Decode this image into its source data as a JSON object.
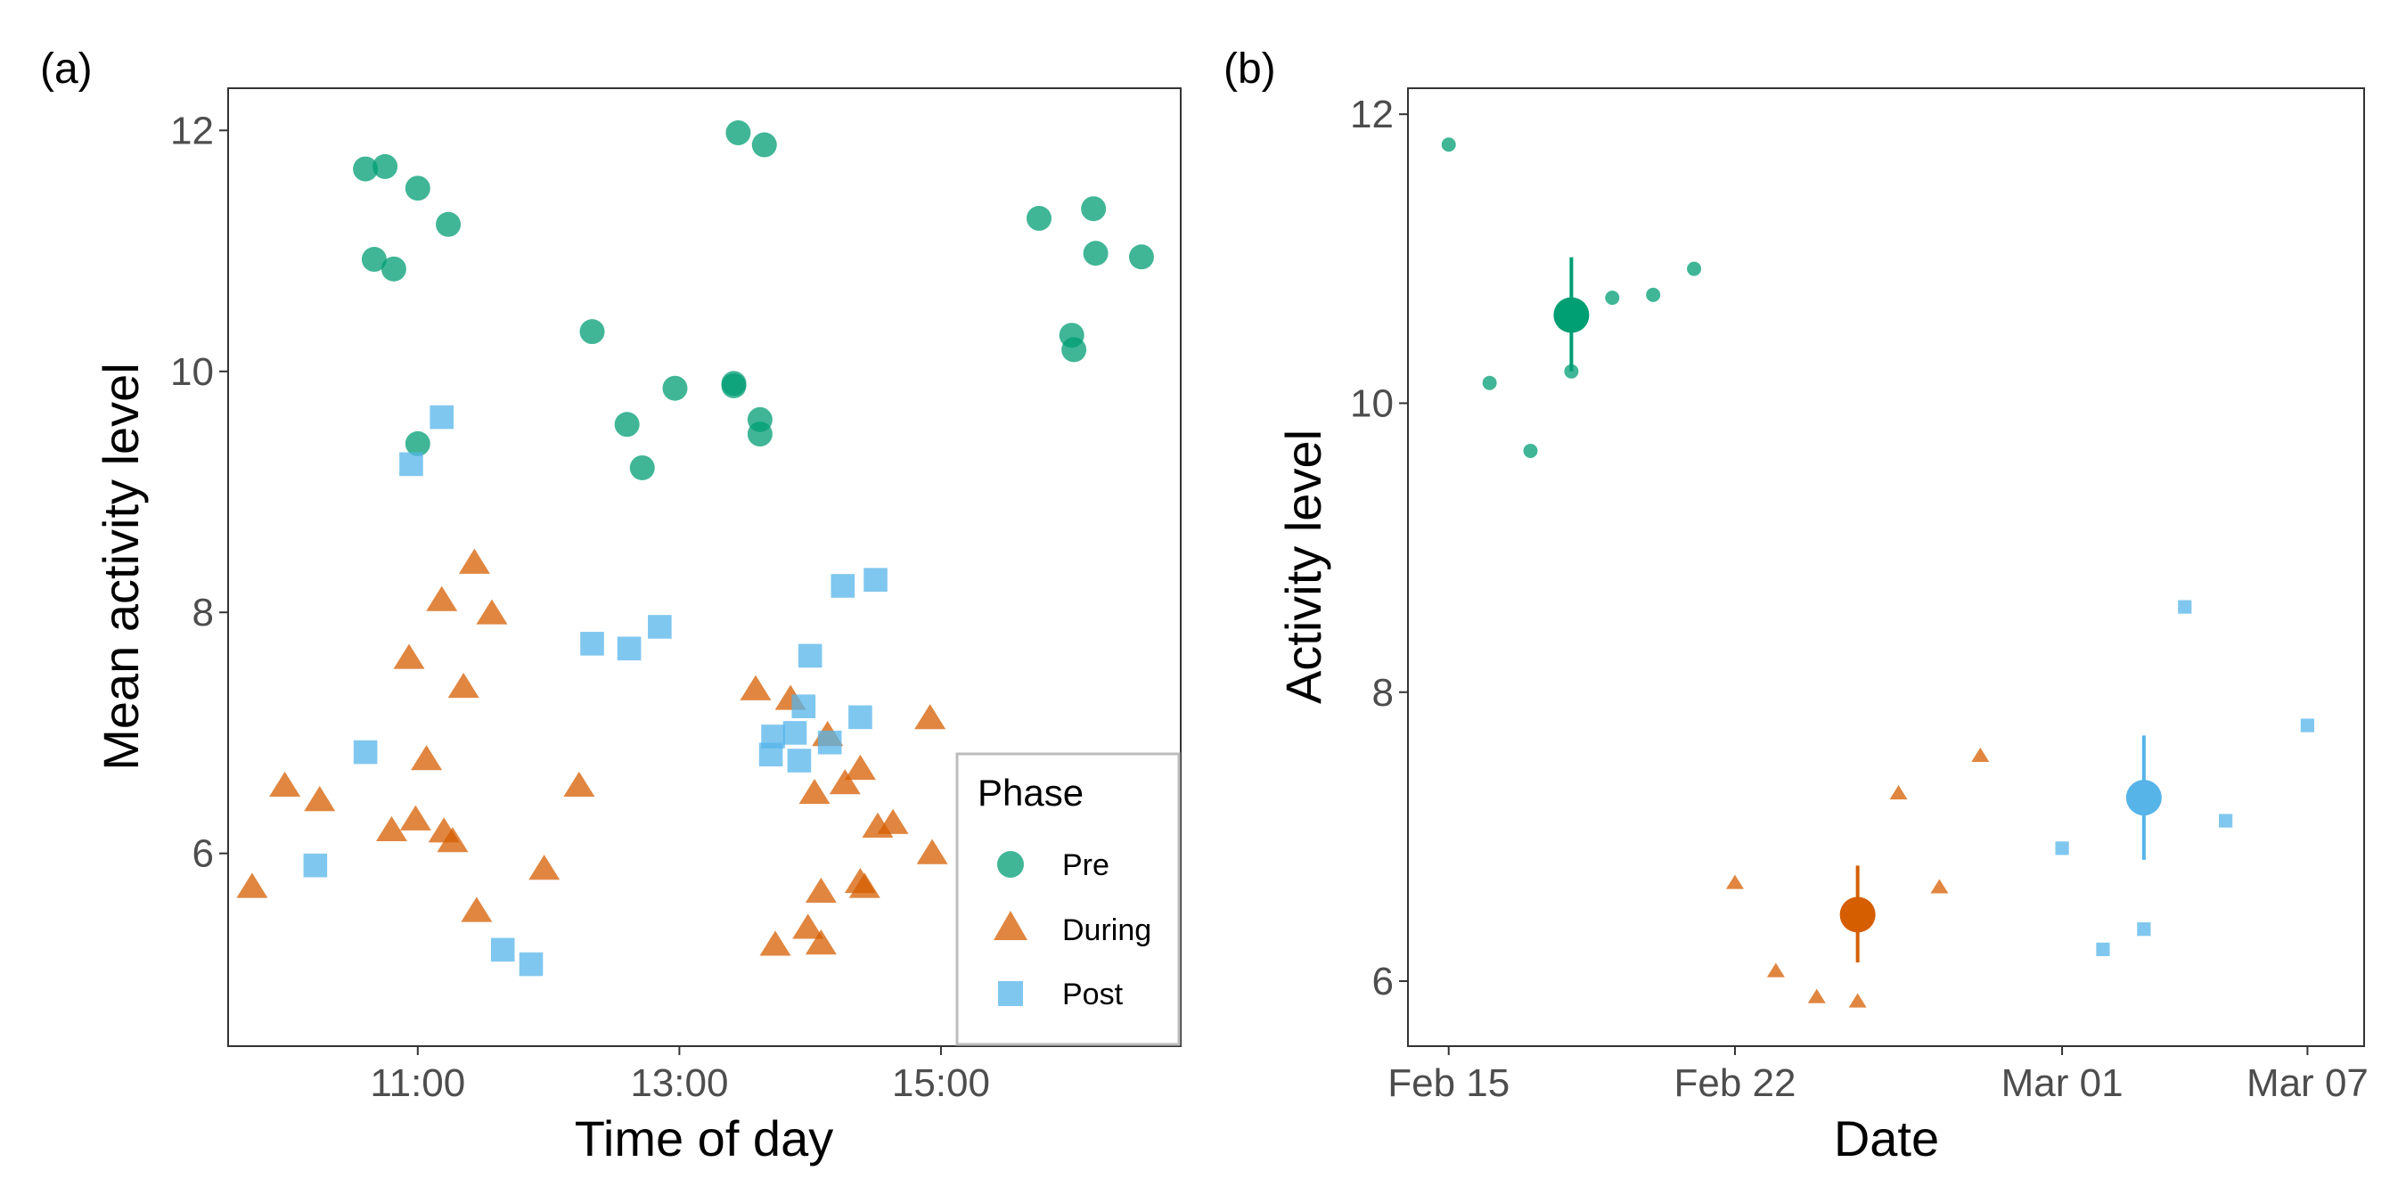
{
  "colors": {
    "Pre": "#009E73",
    "During": "#D55E00",
    "Post": "#56B4E9"
  },
  "chart_data": [
    {
      "type": "scatter",
      "panel_tag": "(a)",
      "xlabel": "Time of day",
      "ylabel": "Mean activity level",
      "xlim": [
        "09:33",
        "16:50"
      ],
      "ylim": [
        4.4,
        12.35
      ],
      "xticks": [
        {
          "value": "11:00",
          "label": "11:00"
        },
        {
          "value": "13:00",
          "label": "13:00"
        },
        {
          "value": "15:00",
          "label": "15:00"
        }
      ],
      "yticks": [
        {
          "value": 6,
          "label": "6"
        },
        {
          "value": 8,
          "label": "8"
        },
        {
          "value": 10,
          "label": "10"
        },
        {
          "value": 12,
          "label": "12"
        }
      ],
      "grid": false,
      "legend": {
        "title": "Phase",
        "position": "bottom-right",
        "items": [
          "Pre",
          "During",
          "Post"
        ]
      },
      "series": [
        {
          "name": "Pre",
          "shape": "circle",
          "points": [
            [
              "10:36",
              11.68
            ],
            [
              "10:40",
              10.93
            ],
            [
              "10:45",
              11.7
            ],
            [
              "10:49",
              10.85
            ],
            [
              "11:00",
              9.4
            ],
            [
              "11:00",
              11.52
            ],
            [
              "11:14",
              11.22
            ],
            [
              "12:20",
              10.33
            ],
            [
              "12:36",
              9.56
            ],
            [
              "12:43",
              9.2
            ],
            [
              "12:58",
              9.86
            ],
            [
              "13:25",
              9.88
            ],
            [
              "13:25",
              9.9
            ],
            [
              "13:27",
              11.98
            ],
            [
              "13:37",
              9.48
            ],
            [
              "13:37",
              9.6
            ],
            [
              "13:39",
              11.88
            ],
            [
              "15:45",
              11.27
            ],
            [
              "16:00",
              10.3
            ],
            [
              "16:01",
              10.18
            ],
            [
              "16:10",
              11.35
            ],
            [
              "16:11",
              10.98
            ],
            [
              "16:32",
              10.95
            ]
          ]
        },
        {
          "name": "During",
          "shape": "triangle",
          "points": [
            [
              "09:44",
              5.72
            ],
            [
              "09:59",
              6.56
            ],
            [
              "10:15",
              6.44
            ],
            [
              "10:48",
              6.19
            ],
            [
              "10:56",
              7.62
            ],
            [
              "10:59",
              6.28
            ],
            [
              "11:04",
              6.78
            ],
            [
              "11:11",
              8.1
            ],
            [
              "11:12",
              6.18
            ],
            [
              "11:16",
              6.1
            ],
            [
              "11:21",
              7.38
            ],
            [
              "11:26",
              8.41
            ],
            [
              "11:27",
              5.52
            ],
            [
              "11:34",
              7.99
            ],
            [
              "11:58",
              5.87
            ],
            [
              "12:14",
              6.56
            ],
            [
              "13:35",
              7.36
            ],
            [
              "13:44",
              5.24
            ],
            [
              "13:51",
              7.28
            ],
            [
              "13:59",
              5.38
            ],
            [
              "14:02",
              6.5
            ],
            [
              "14:05",
              5.25
            ],
            [
              "14:05",
              5.68
            ],
            [
              "14:08",
              6.98
            ],
            [
              "14:16",
              6.58
            ],
            [
              "14:23",
              5.76
            ],
            [
              "14:23",
              6.7
            ],
            [
              "14:25",
              5.72
            ],
            [
              "14:31",
              6.22
            ],
            [
              "14:38",
              6.25
            ],
            [
              "14:55",
              7.12
            ],
            [
              "14:56",
              6.0
            ]
          ]
        },
        {
          "name": "Post",
          "shape": "square",
          "points": [
            [
              "10:13",
              5.9
            ],
            [
              "10:36",
              6.84
            ],
            [
              "10:57",
              9.23
            ],
            [
              "11:11",
              9.62
            ],
            [
              "11:39",
              5.2
            ],
            [
              "11:52",
              5.08
            ],
            [
              "12:20",
              7.74
            ],
            [
              "12:37",
              7.7
            ],
            [
              "12:51",
              7.88
            ],
            [
              "13:42",
              6.82
            ],
            [
              "13:43",
              6.97
            ],
            [
              "13:53",
              7.0
            ],
            [
              "13:55",
              6.77
            ],
            [
              "13:57",
              7.22
            ],
            [
              "14:00",
              7.64
            ],
            [
              "14:09",
              6.92
            ],
            [
              "14:15",
              8.22
            ],
            [
              "14:23",
              7.13
            ],
            [
              "14:30",
              8.27
            ]
          ]
        }
      ]
    },
    {
      "type": "scatter",
      "panel_tag": "(b)",
      "xlabel": "Date",
      "ylabel": "Activity level",
      "xlim": [
        "2024-02-14T00:05",
        "2024-03-08T09:15"
      ],
      "ylim": [
        5.55,
        12.18
      ],
      "xticks": [
        {
          "value": "2024-02-15",
          "label": "Feb 15"
        },
        {
          "value": "2024-02-22",
          "label": "Feb 22"
        },
        {
          "value": "2024-03-01",
          "label": "Mar 01"
        },
        {
          "value": "2024-03-07",
          "label": "Mar 07"
        }
      ],
      "yticks": [
        {
          "value": 6,
          "label": "6"
        },
        {
          "value": 8,
          "label": "8"
        },
        {
          "value": 10,
          "label": "10"
        },
        {
          "value": 12,
          "label": "12"
        }
      ],
      "grid": false,
      "series": [
        {
          "name": "Pre",
          "shape": "circle",
          "points": [
            [
              "2024-02-15",
              11.79
            ],
            [
              "2024-02-16",
              10.14
            ],
            [
              "2024-02-17",
              9.67
            ],
            [
              "2024-02-18",
              10.22
            ],
            [
              "2024-02-19",
              10.73
            ],
            [
              "2024-02-20",
              10.75
            ],
            [
              "2024-02-21",
              10.93
            ]
          ],
          "mean": {
            "x": "2024-02-18",
            "y": 10.61,
            "lower": 10.22,
            "upper": 11.01
          }
        },
        {
          "name": "During",
          "shape": "triangle",
          "points": [
            [
              "2024-02-22",
              6.68
            ],
            [
              "2024-02-23",
              6.07
            ],
            [
              "2024-02-24",
              5.89
            ],
            [
              "2024-02-25",
              5.86
            ],
            [
              "2024-02-26",
              7.3
            ],
            [
              "2024-02-27",
              6.65
            ],
            [
              "2024-02-28",
              7.56
            ]
          ],
          "mean": {
            "x": "2024-02-25",
            "y": 6.46,
            "lower": 6.13,
            "upper": 6.8
          }
        },
        {
          "name": "Post",
          "shape": "square",
          "points": [
            [
              "2024-03-01",
              6.92
            ],
            [
              "2024-03-02",
              6.22
            ],
            [
              "2024-03-03",
              6.36
            ],
            [
              "2024-03-04",
              8.59
            ],
            [
              "2024-03-05",
              7.11
            ],
            [
              "2024-03-07",
              7.77
            ]
          ],
          "mean": {
            "x": "2024-03-03",
            "y": 7.27,
            "lower": 6.84,
            "upper": 7.7
          }
        }
      ]
    }
  ]
}
